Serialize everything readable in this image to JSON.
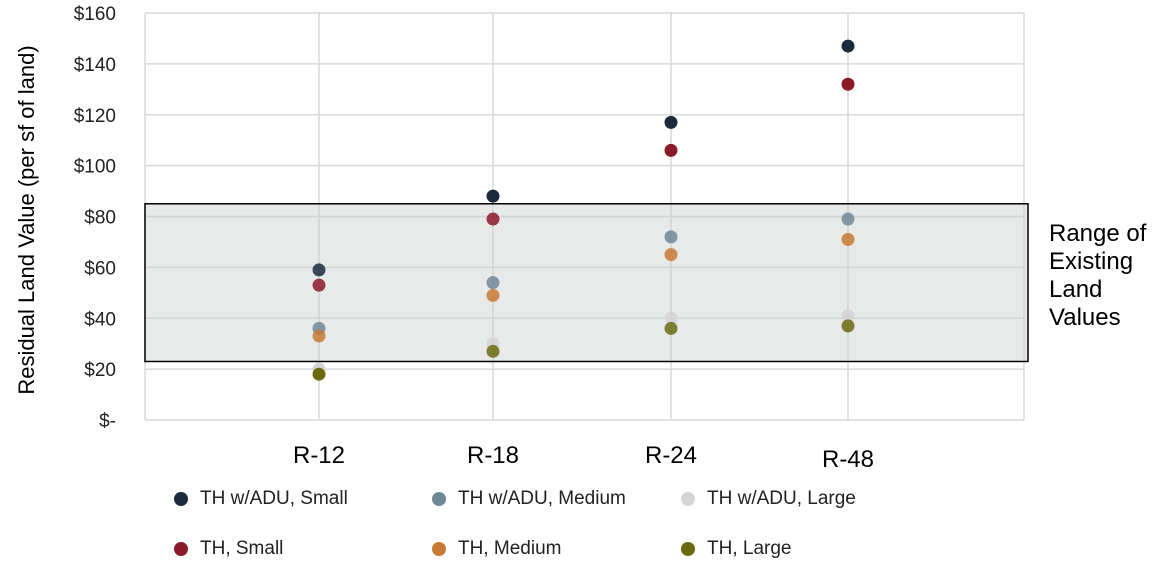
{
  "chart_data": {
    "type": "scatter",
    "categories": [
      "R-12",
      "R-18",
      "R-24",
      "R-48"
    ],
    "ylabel": "Residual Land Value (per sf of land)",
    "ylim": [
      0,
      160
    ],
    "yticks": [
      0,
      20,
      40,
      60,
      80,
      100,
      120,
      140,
      160
    ],
    "ytick_labels": [
      "$-",
      "$20",
      "$40",
      "$60",
      "$80",
      "$100",
      "$120",
      "$140",
      "$160"
    ],
    "grid": true,
    "legend_position": "bottom",
    "band": {
      "range": [
        23,
        85
      ],
      "label_lines": [
        "Range of",
        "Existing",
        "Land",
        "Values"
      ]
    },
    "series": [
      {
        "name": "TH w/ADU, Small",
        "color": "#1b2a3d",
        "values": [
          59,
          88,
          117,
          147
        ]
      },
      {
        "name": "TH w/ADU, Medium",
        "color": "#6f8898",
        "values": [
          36,
          54,
          72,
          79
        ]
      },
      {
        "name": "TH w/ADU, Large",
        "color": "#d4d4d4",
        "values": [
          20,
          30,
          40,
          41
        ]
      },
      {
        "name": "TH, Small",
        "color": "#8b1a2b",
        "values": [
          53,
          79,
          106,
          132
        ]
      },
      {
        "name": "TH, Medium",
        "color": "#c87a35",
        "values": [
          33,
          49,
          65,
          71
        ]
      },
      {
        "name": "TH, Large",
        "color": "#6b6a10",
        "values": [
          18,
          27,
          36,
          37
        ]
      }
    ]
  }
}
